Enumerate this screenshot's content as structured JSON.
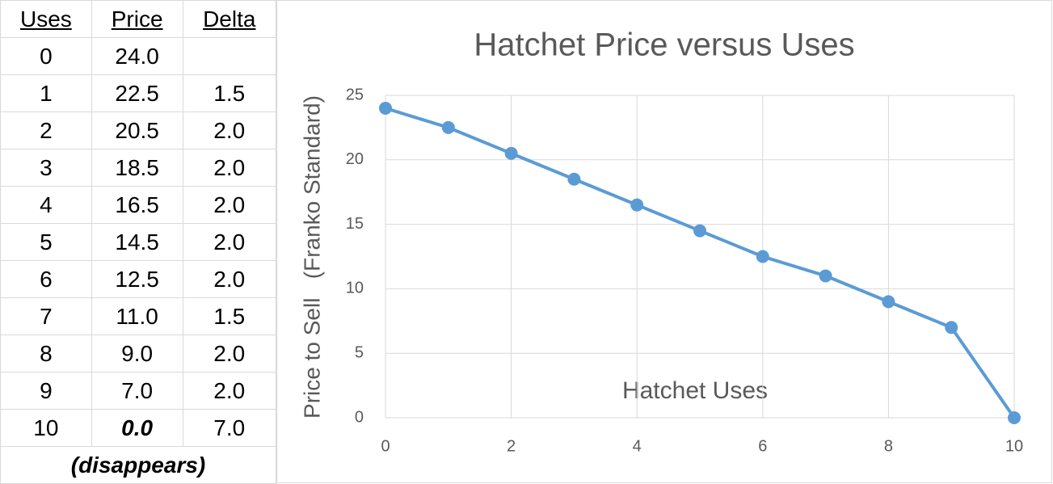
{
  "table": {
    "header": [
      "Uses",
      "Price",
      "Delta"
    ],
    "rows": [
      [
        "0",
        "24.0"
      ],
      [
        "1",
        "22.5",
        "1.5"
      ],
      [
        "2",
        "20.5",
        "2.0"
      ],
      [
        "3",
        "18.5",
        "2.0"
      ],
      [
        "4",
        "16.5",
        "2.0"
      ],
      [
        "5",
        "14.5",
        "2.0"
      ],
      [
        "6",
        "12.5",
        "2.0"
      ],
      [
        "7",
        "11.0",
        "1.5"
      ],
      [
        "8",
        "9.0",
        "2.0"
      ],
      [
        "9",
        "7.0",
        "2.0"
      ],
      [
        "10",
        "0.0",
        "7.0"
      ]
    ],
    "note": "(disappears)"
  },
  "chart_data": {
    "type": "line",
    "title": "Hatchet Price versus Uses",
    "x_label": "Hatchet Uses",
    "y_label": "Price to Sell   (Franko Standard)",
    "x": [
      0,
      1,
      2,
      3,
      4,
      5,
      6,
      7,
      8,
      9,
      10
    ],
    "series": [
      {
        "name": "Price",
        "color": "#5b9bd5",
        "values": [
          24,
          22.5,
          20.5,
          18.5,
          16.5,
          14.5,
          12.5,
          11,
          9,
          7,
          0
        ]
      }
    ],
    "xlim": [
      0,
      10
    ],
    "xticks": [
      0,
      2,
      4,
      6,
      8,
      10
    ],
    "ylim": [
      0,
      25
    ],
    "yticks": [
      0,
      5,
      10,
      15,
      20,
      25
    ],
    "grid": true
  }
}
